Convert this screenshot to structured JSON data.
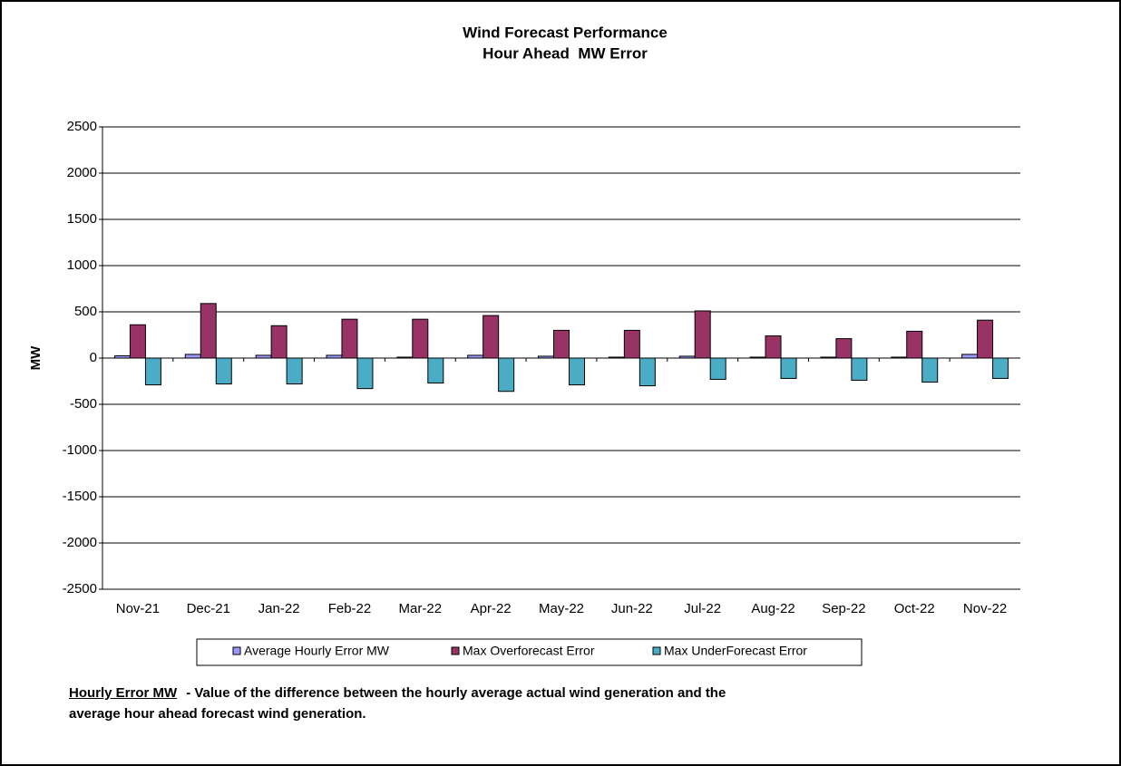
{
  "chart_data": {
    "type": "bar",
    "title": "Wind Forecast Performance",
    "subtitle": "Hour Ahead  MW Error",
    "y_label": "MW",
    "categories": [
      "Nov-21",
      "Dec-21",
      "Jan-22",
      "Feb-22",
      "Mar-22",
      "Apr-22",
      "May-22",
      "Jun-22",
      "Jul-22",
      "Aug-22",
      "Sep-22",
      "Oct-22",
      "Nov-22"
    ],
    "series": [
      {
        "name": "Average Hourly Error MW",
        "color": "#9999ff",
        "values": [
          25,
          40,
          30,
          30,
          10,
          30,
          20,
          10,
          20,
          10,
          10,
          10,
          40
        ]
      },
      {
        "name": "Max Overforecast Error",
        "color": "#993366",
        "values": [
          360,
          590,
          350,
          420,
          420,
          460,
          300,
          300,
          510,
          240,
          210,
          290,
          410
        ]
      },
      {
        "name": "Max UnderForecast Error",
        "color": "#4bacc6",
        "values": [
          -290,
          -280,
          -280,
          -330,
          -270,
          -360,
          -290,
          -300,
          -230,
          -220,
          -240,
          -260,
          -220
        ]
      }
    ],
    "ylim": [
      -2500,
      2500
    ],
    "yticks": [
      -2500,
      -2000,
      -1500,
      -1000,
      -500,
      0,
      500,
      1000,
      1500,
      2000,
      2500
    ],
    "grid": true,
    "legend": "bottom"
  },
  "footnote": {
    "term": "Hourly Error MW",
    "lines": [
      "- Value of the difference between the hourly average actual wind generation and the",
      "average hour ahead forecast wind generation."
    ]
  }
}
